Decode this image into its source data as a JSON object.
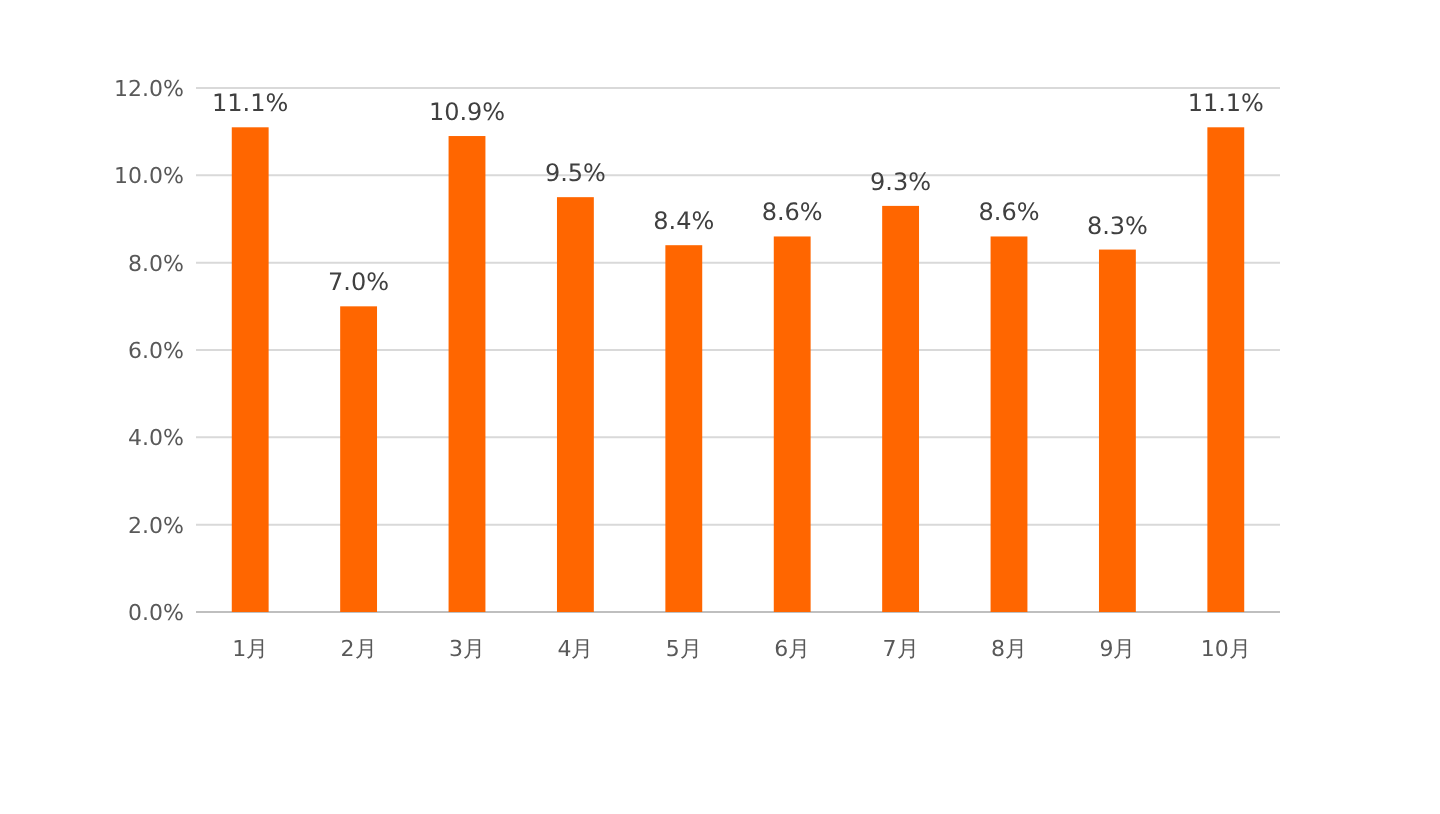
{
  "chart_data": {
    "type": "bar",
    "categories": [
      "1月",
      "2月",
      "3月",
      "4月",
      "5月",
      "6月",
      "7月",
      "8月",
      "9月",
      "10月"
    ],
    "values": [
      11.1,
      7.0,
      10.9,
      9.5,
      8.4,
      8.6,
      9.3,
      8.6,
      8.3,
      11.1
    ],
    "value_labels": [
      "11.1%",
      "7.0%",
      "10.9%",
      "9.5%",
      "8.4%",
      "8.6%",
      "9.3%",
      "8.6%",
      "8.3%",
      "11.1%"
    ],
    "color": "#ff6600",
    "ylim": [
      0,
      12
    ],
    "yticks": [
      {
        "value": 0,
        "label": "0.0%"
      },
      {
        "value": 2,
        "label": "2.0%"
      },
      {
        "value": 4,
        "label": "4.0%"
      },
      {
        "value": 6,
        "label": "6.0%"
      },
      {
        "value": 8,
        "label": "8.0%"
      },
      {
        "value": 10,
        "label": "10.0%"
      },
      {
        "value": 12,
        "label": "12.0%"
      }
    ],
    "grid": "y"
  }
}
